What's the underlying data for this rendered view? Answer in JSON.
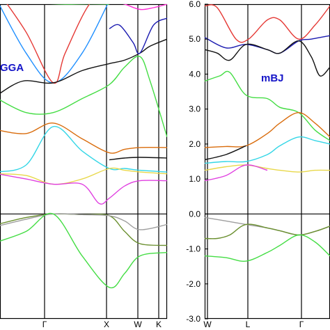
{
  "chart_data": [
    {
      "type": "line",
      "panel_label": "GGA",
      "x_ticks": [
        "Γ",
        "X",
        "W",
        "K"
      ],
      "ylim": [
        -3.0,
        6.0
      ],
      "fermi_level": 0.0,
      "grid": false,
      "legend": "none",
      "series": [
        {
          "color": "#1f8fff",
          "points": [
            [
              0.0,
              6.1
            ],
            [
              0.17,
              4.6
            ],
            [
              0.33,
              3.75
            ],
            [
              0.5,
              4.6
            ],
            [
              0.66,
              6.1
            ]
          ]
        },
        {
          "color": "#e53935",
          "points": [
            [
              0.0,
              6.4
            ],
            [
              0.17,
              5.2
            ],
            [
              0.33,
              3.75
            ],
            [
              0.4,
              4.6
            ],
            [
              0.55,
              6.05
            ],
            [
              0.7,
              6.5
            ]
          ]
        },
        {
          "color": "#111111",
          "points": [
            [
              0.0,
              3.4
            ],
            [
              0.15,
              3.8
            ],
            [
              0.33,
              3.75
            ],
            [
              0.5,
              4.1
            ],
            [
              0.66,
              4.3
            ],
            [
              0.75,
              4.4
            ],
            [
              0.84,
              4.6
            ],
            [
              0.9,
              4.8
            ],
            [
              1.0,
              5.0
            ]
          ]
        },
        {
          "color": "#1a1ab0",
          "points": [
            [
              0.66,
              5.3
            ],
            [
              0.72,
              5.4
            ],
            [
              0.8,
              4.9
            ],
            [
              0.84,
              4.6
            ],
            [
              0.92,
              5.4
            ],
            [
              1.0,
              5.6
            ]
          ]
        },
        {
          "color": "#44dd44",
          "points": [
            [
              0.0,
              3.3
            ],
            [
              0.17,
              2.9
            ],
            [
              0.33,
              2.9
            ],
            [
              0.5,
              3.3
            ],
            [
              0.66,
              3.7
            ],
            [
              0.75,
              4.2
            ],
            [
              0.84,
              4.5
            ],
            [
              0.9,
              3.8
            ],
            [
              1.0,
              2.2
            ]
          ]
        },
        {
          "color": "#ff2bd6",
          "points": [
            [
              0.66,
              6.1
            ],
            [
              0.75,
              6.0
            ],
            [
              0.84,
              5.85
            ],
            [
              0.92,
              5.9
            ],
            [
              1.0,
              6.0
            ]
          ]
        },
        {
          "color": "#44dd44",
          "points": [
            [
              0.28,
              6.02
            ],
            [
              0.4,
              6.0
            ],
            [
              0.55,
              6.01
            ],
            [
              0.66,
              6.0
            ]
          ]
        },
        {
          "color": "#d96c0c",
          "points": [
            [
              0.0,
              2.4
            ],
            [
              0.17,
              2.3
            ],
            [
              0.33,
              2.6
            ],
            [
              0.5,
              2.15
            ],
            [
              0.66,
              1.75
            ],
            [
              0.75,
              1.85
            ],
            [
              0.84,
              1.9
            ],
            [
              1.0,
              1.9
            ]
          ]
        },
        {
          "color": "#111111",
          "points": [
            [
              0.66,
              1.55
            ],
            [
              0.75,
              1.6
            ],
            [
              0.84,
              1.62
            ],
            [
              1.0,
              1.6
            ]
          ]
        },
        {
          "color": "#33d6e6",
          "points": [
            [
              0.0,
              1.2
            ],
            [
              0.17,
              1.4
            ],
            [
              0.33,
              2.5
            ],
            [
              0.5,
              1.8
            ],
            [
              0.66,
              1.3
            ],
            [
              0.75,
              1.3
            ],
            [
              0.84,
              1.25
            ],
            [
              1.0,
              1.2
            ]
          ]
        },
        {
          "color": "#e8d84a",
          "points": [
            [
              0.0,
              1.15
            ],
            [
              0.17,
              1.1
            ],
            [
              0.33,
              0.85
            ],
            [
              0.5,
              1.0
            ],
            [
              0.66,
              1.3
            ],
            [
              0.75,
              1.25
            ],
            [
              0.84,
              1.2
            ],
            [
              1.0,
              1.15
            ]
          ]
        },
        {
          "color": "#e040e0",
          "points": [
            [
              0.0,
              1.15
            ],
            [
              0.17,
              1.0
            ],
            [
              0.33,
              0.85
            ],
            [
              0.5,
              0.85
            ],
            [
              0.6,
              0.3
            ],
            [
              0.66,
              0.45
            ],
            [
              0.75,
              0.8
            ],
            [
              0.84,
              0.95
            ],
            [
              1.0,
              0.95
            ]
          ]
        },
        {
          "color": "#6a8f2f",
          "points": [
            [
              0.0,
              -0.3
            ],
            [
              0.17,
              -0.1
            ],
            [
              0.33,
              0.0
            ],
            [
              0.5,
              -0.02
            ],
            [
              0.66,
              -0.05
            ],
            [
              0.75,
              -0.5
            ],
            [
              0.84,
              -0.85
            ],
            [
              1.0,
              -0.9
            ]
          ]
        },
        {
          "color": "#9e9e9e",
          "points": [
            [
              0.0,
              -0.35
            ],
            [
              0.17,
              -0.15
            ],
            [
              0.33,
              0.0
            ],
            [
              0.5,
              -0.02
            ],
            [
              0.66,
              -0.05
            ],
            [
              0.75,
              -0.2
            ],
            [
              0.84,
              -0.45
            ],
            [
              1.0,
              -0.3
            ]
          ]
        },
        {
          "color": "#44dd44",
          "points": [
            [
              0.0,
              -0.8
            ],
            [
              0.17,
              -0.5
            ],
            [
              0.33,
              0.0
            ],
            [
              0.5,
              -1.2
            ],
            [
              0.66,
              -2.1
            ],
            [
              0.75,
              -1.7
            ],
            [
              0.84,
              -1.2
            ],
            [
              1.0,
              -1.1
            ]
          ]
        }
      ]
    },
    {
      "type": "line",
      "panel_label": "mBJ",
      "x_ticks": [
        "W",
        "L",
        "Γ"
      ],
      "ylim": [
        -3.0,
        6.0
      ],
      "yticks": [
        "6.0",
        "5.0",
        "4.0",
        "3.0",
        "2.0",
        "1.0",
        "0.0",
        "-1.0",
        "-2.0",
        "-3.0"
      ],
      "fermi_level": 0.0,
      "grid": false,
      "legend": "none",
      "series": [
        {
          "color": "#e53935",
          "points": [
            [
              0.0,
              5.95
            ],
            [
              0.1,
              5.9
            ],
            [
              0.25,
              5.0
            ],
            [
              0.35,
              5.0
            ],
            [
              0.5,
              5.55
            ],
            [
              0.6,
              5.55
            ],
            [
              0.75,
              5.0
            ],
            [
              0.88,
              5.4
            ],
            [
              1.0,
              5.95
            ]
          ]
        },
        {
          "color": "#1a1ab0",
          "points": [
            [
              0.0,
              5.05
            ],
            [
              0.17,
              4.75
            ],
            [
              0.33,
              4.85
            ],
            [
              0.5,
              4.7
            ],
            [
              0.6,
              4.6
            ],
            [
              0.75,
              4.95
            ],
            [
              0.85,
              5.0
            ],
            [
              1.0,
              5.1
            ]
          ]
        },
        {
          "color": "#111111",
          "points": [
            [
              0.0,
              4.7
            ],
            [
              0.1,
              4.6
            ],
            [
              0.2,
              4.4
            ],
            [
              0.33,
              4.85
            ],
            [
              0.5,
              4.7
            ],
            [
              0.6,
              4.6
            ],
            [
              0.75,
              4.95
            ],
            [
              0.85,
              4.5
            ],
            [
              0.92,
              3.95
            ],
            [
              1.0,
              4.2
            ]
          ]
        },
        {
          "color": "#44dd44",
          "points": [
            [
              0.0,
              3.8
            ],
            [
              0.12,
              3.95
            ],
            [
              0.2,
              4.05
            ],
            [
              0.33,
              3.4
            ],
            [
              0.5,
              3.3
            ],
            [
              0.6,
              3.05
            ],
            [
              0.75,
              2.9
            ],
            [
              0.88,
              2.4
            ],
            [
              1.0,
              2.1
            ]
          ]
        },
        {
          "color": "#d96c0c",
          "points": [
            [
              0.0,
              1.9
            ],
            [
              0.17,
              1.93
            ],
            [
              0.33,
              1.95
            ],
            [
              0.5,
              2.3
            ],
            [
              0.6,
              2.6
            ],
            [
              0.75,
              2.9
            ],
            [
              0.88,
              2.6
            ],
            [
              1.0,
              2.2
            ]
          ]
        },
        {
          "color": "#111111",
          "points": [
            [
              0.0,
              1.55
            ],
            [
              0.17,
              1.7
            ],
            [
              0.33,
              1.95
            ]
          ]
        },
        {
          "color": "#33d6e6",
          "points": [
            [
              0.0,
              1.45
            ],
            [
              0.17,
              1.5
            ],
            [
              0.33,
              1.5
            ],
            [
              0.5,
              1.7
            ],
            [
              0.6,
              1.95
            ],
            [
              0.75,
              2.2
            ],
            [
              0.88,
              2.1
            ],
            [
              1.0,
              2.0
            ]
          ]
        },
        {
          "color": "#e8d84a",
          "points": [
            [
              0.0,
              1.25
            ],
            [
              0.17,
              1.35
            ],
            [
              0.33,
              1.4
            ],
            [
              0.5,
              1.3
            ],
            [
              0.6,
              1.25
            ],
            [
              0.75,
              1.2
            ],
            [
              0.88,
              1.25
            ],
            [
              1.0,
              1.25
            ]
          ]
        },
        {
          "color": "#e040e0",
          "points": [
            [
              0.0,
              0.95
            ],
            [
              0.17,
              1.1
            ],
            [
              0.33,
              1.4
            ],
            [
              0.5,
              1.25
            ]
          ]
        },
        {
          "color": "#9e9e9e",
          "points": [
            [
              0.0,
              -0.1
            ],
            [
              0.17,
              -0.2
            ],
            [
              0.33,
              -0.3
            ],
            [
              0.5,
              -0.4
            ],
            [
              0.6,
              -0.48
            ],
            [
              0.75,
              -0.6
            ],
            [
              0.88,
              -0.5
            ],
            [
              1.0,
              -0.35
            ]
          ]
        },
        {
          "color": "#6a8f2f",
          "points": [
            [
              0.0,
              -0.7
            ],
            [
              0.1,
              -0.7
            ],
            [
              0.2,
              -0.6
            ],
            [
              0.33,
              -0.3
            ],
            [
              0.5,
              -0.4
            ],
            [
              0.6,
              -0.48
            ],
            [
              0.75,
              -0.6
            ],
            [
              0.88,
              -0.5
            ],
            [
              1.0,
              -0.35
            ]
          ]
        },
        {
          "color": "#44dd44",
          "points": [
            [
              0.0,
              -1.2
            ],
            [
              0.17,
              -1.25
            ],
            [
              0.33,
              -1.35
            ],
            [
              0.5,
              -1.1
            ],
            [
              0.6,
              -0.9
            ],
            [
              0.75,
              -0.6
            ],
            [
              0.88,
              -0.8
            ],
            [
              1.0,
              -1.2
            ]
          ]
        }
      ]
    }
  ]
}
